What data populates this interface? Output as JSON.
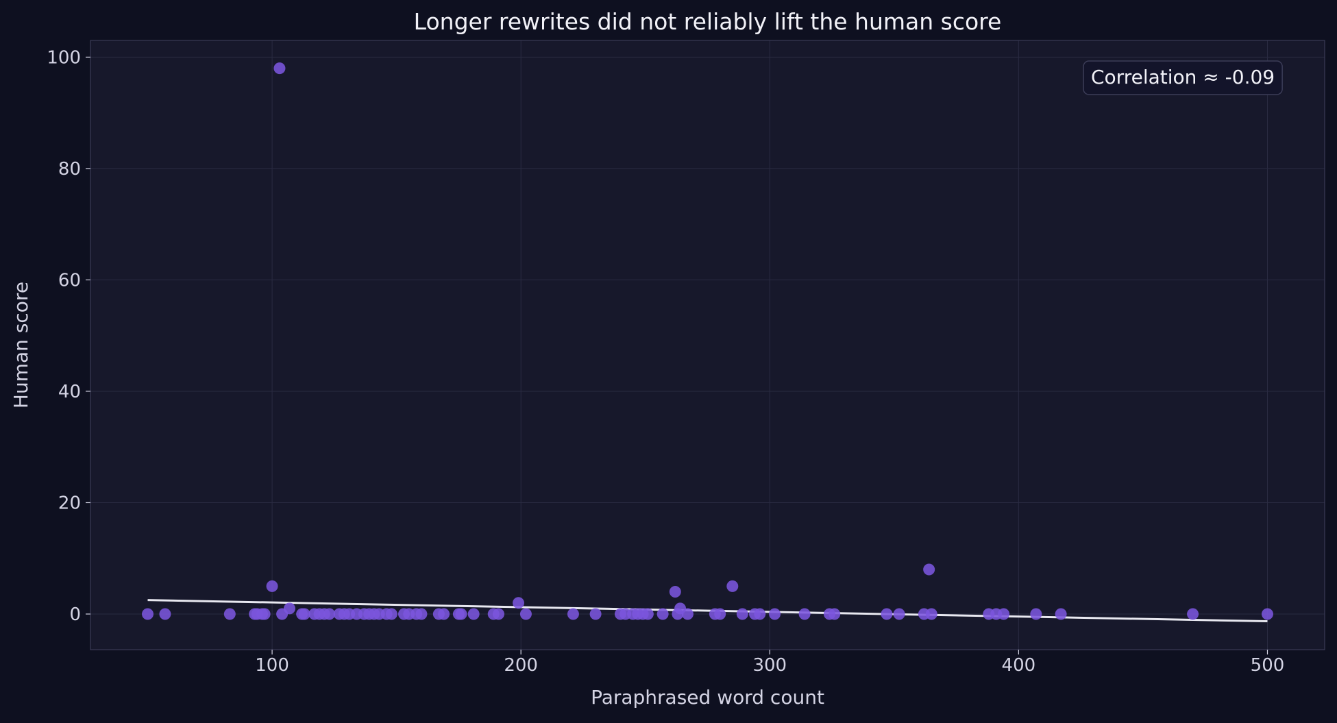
{
  "chart_data": {
    "type": "scatter",
    "title": "Longer rewrites did not reliably lift the human score",
    "xlabel": "Paraphrased word count",
    "ylabel": "Human score",
    "xlim": [
      27,
      523
    ],
    "ylim": [
      -6.4,
      103
    ],
    "xticks": [
      100,
      200,
      300,
      400,
      500
    ],
    "yticks": [
      0,
      20,
      40,
      60,
      80,
      100
    ],
    "grid": true,
    "annotation": "Correlation ≈ -0.09",
    "annotation_position": "top-right",
    "trendline": {
      "x": [
        50,
        500
      ],
      "y": [
        2.5,
        -1.3
      ]
    },
    "points": [
      {
        "x": 50,
        "y": 0
      },
      {
        "x": 57,
        "y": 0
      },
      {
        "x": 83,
        "y": 0
      },
      {
        "x": 93,
        "y": 0
      },
      {
        "x": 94,
        "y": 0
      },
      {
        "x": 96,
        "y": 0
      },
      {
        "x": 97,
        "y": 0
      },
      {
        "x": 100,
        "y": 5
      },
      {
        "x": 103,
        "y": 98
      },
      {
        "x": 104,
        "y": 0
      },
      {
        "x": 107,
        "y": 1
      },
      {
        "x": 112,
        "y": 0
      },
      {
        "x": 113,
        "y": 0
      },
      {
        "x": 117,
        "y": 0
      },
      {
        "x": 119,
        "y": 0
      },
      {
        "x": 121,
        "y": 0
      },
      {
        "x": 123,
        "y": 0
      },
      {
        "x": 127,
        "y": 0
      },
      {
        "x": 129,
        "y": 0
      },
      {
        "x": 131,
        "y": 0
      },
      {
        "x": 134,
        "y": 0
      },
      {
        "x": 137,
        "y": 0
      },
      {
        "x": 139,
        "y": 0
      },
      {
        "x": 141,
        "y": 0
      },
      {
        "x": 143,
        "y": 0
      },
      {
        "x": 146,
        "y": 0
      },
      {
        "x": 148,
        "y": 0
      },
      {
        "x": 153,
        "y": 0
      },
      {
        "x": 155,
        "y": 0
      },
      {
        "x": 158,
        "y": 0
      },
      {
        "x": 160,
        "y": 0
      },
      {
        "x": 167,
        "y": 0
      },
      {
        "x": 169,
        "y": 0
      },
      {
        "x": 175,
        "y": 0
      },
      {
        "x": 176,
        "y": 0
      },
      {
        "x": 181,
        "y": 0
      },
      {
        "x": 189,
        "y": 0
      },
      {
        "x": 191,
        "y": 0
      },
      {
        "x": 199,
        "y": 2
      },
      {
        "x": 202,
        "y": 0
      },
      {
        "x": 221,
        "y": 0
      },
      {
        "x": 230,
        "y": 0
      },
      {
        "x": 240,
        "y": 0
      },
      {
        "x": 242,
        "y": 0
      },
      {
        "x": 245,
        "y": 0
      },
      {
        "x": 247,
        "y": 0
      },
      {
        "x": 249,
        "y": 0
      },
      {
        "x": 251,
        "y": 0
      },
      {
        "x": 257,
        "y": 0
      },
      {
        "x": 262,
        "y": 4
      },
      {
        "x": 263,
        "y": 0
      },
      {
        "x": 264,
        "y": 1
      },
      {
        "x": 267,
        "y": 0
      },
      {
        "x": 278,
        "y": 0
      },
      {
        "x": 280,
        "y": 0
      },
      {
        "x": 285,
        "y": 5
      },
      {
        "x": 289,
        "y": 0
      },
      {
        "x": 294,
        "y": 0
      },
      {
        "x": 296,
        "y": 0
      },
      {
        "x": 302,
        "y": 0
      },
      {
        "x": 314,
        "y": 0
      },
      {
        "x": 324,
        "y": 0
      },
      {
        "x": 326,
        "y": 0
      },
      {
        "x": 347,
        "y": 0
      },
      {
        "x": 352,
        "y": 0
      },
      {
        "x": 362,
        "y": 0
      },
      {
        "x": 364,
        "y": 8
      },
      {
        "x": 365,
        "y": 0
      },
      {
        "x": 388,
        "y": 0
      },
      {
        "x": 391,
        "y": 0
      },
      {
        "x": 394,
        "y": 0
      },
      {
        "x": 407,
        "y": 0
      },
      {
        "x": 417,
        "y": 0
      },
      {
        "x": 470,
        "y": 0
      },
      {
        "x": 500,
        "y": 0
      }
    ],
    "colors": {
      "page_background": "#0e1020",
      "plot_background": "#17182b",
      "grid": "#2a2b42",
      "spine": "#3a3b55",
      "point": "#7b55dd",
      "trendline": "#e8e8f0",
      "text": "#d4d4e4",
      "title": "#f2f2f8",
      "annotation_box": "#13142a",
      "annotation_border": "#3c3d58"
    }
  }
}
